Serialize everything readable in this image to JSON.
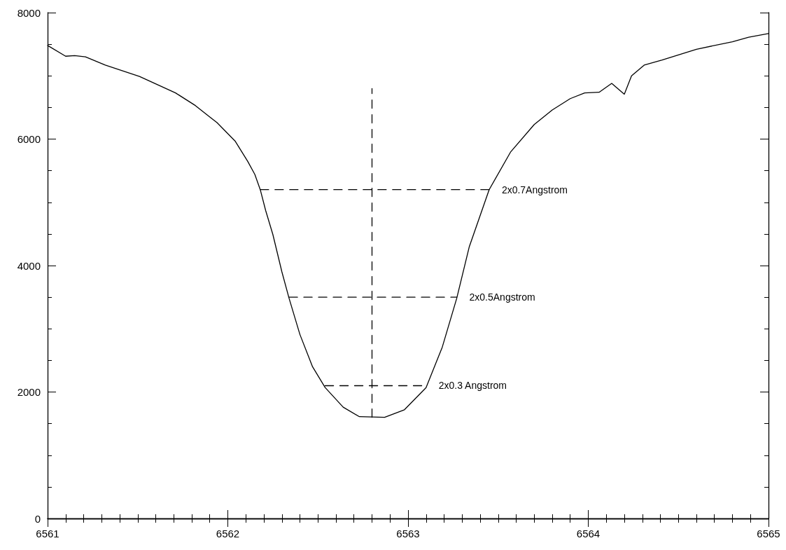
{
  "chart_data": {
    "type": "line",
    "xlim": [
      6561,
      6565
    ],
    "xticks": [
      6561,
      6562,
      6563,
      6564,
      6565
    ],
    "ylim": [
      0,
      8000
    ],
    "yticks": [
      0,
      2000,
      4000,
      6000,
      8000
    ],
    "grid": false,
    "marker": "none",
    "series": [
      {
        "color": "#000000",
        "line_style": "solid",
        "x": [
          6561.0,
          6561.1,
          6561.15,
          6561.21,
          6561.32,
          6561.51,
          6561.71,
          6561.82,
          6561.9,
          6561.94,
          6562.04,
          6562.11,
          6562.15,
          6562.18,
          6562.21,
          6562.25,
          6562.3,
          6562.34,
          6562.4,
          6562.47,
          6562.54,
          6562.64,
          6562.73,
          6562.87,
          6562.98,
          6563.1,
          6563.19,
          6563.27,
          6563.34,
          6563.45,
          6563.57,
          6563.7,
          6563.8,
          6563.9,
          6563.98,
          6564.06,
          6564.13,
          6564.2,
          6564.24,
          6564.31,
          6564.41,
          6564.6,
          6564.8,
          6564.89,
          6565.0
        ],
        "values": [
          7480,
          7310,
          7320,
          7300,
          7170,
          6990,
          6730,
          6530,
          6350,
          6260,
          5970,
          5650,
          5440,
          5200,
          4870,
          4490,
          3900,
          3480,
          2910,
          2400,
          2070,
          1760,
          1610,
          1600,
          1720,
          2070,
          2710,
          3480,
          4300,
          5200,
          5800,
          6230,
          6460,
          6640,
          6730,
          6740,
          6880,
          6710,
          7000,
          7170,
          7250,
          7420,
          7540,
          7610,
          7670
        ]
      },
      {
        "color": "#000000",
        "line_style": "dashed",
        "x": [
          6562.8,
          6562.8
        ],
        "values": [
          1600,
          6800
        ]
      },
      {
        "color": "#000000",
        "line_style": "dashed",
        "x": [
          6562.18,
          6563.45
        ],
        "values": [
          5200,
          5200
        ]
      },
      {
        "color": "#000000",
        "line_style": "dashed",
        "x": [
          6562.34,
          6563.27
        ],
        "values": [
          3500,
          3500
        ]
      },
      {
        "color": "#000000",
        "line_style": "dashed",
        "x": [
          6562.54,
          6563.1
        ],
        "values": [
          2100,
          2100
        ]
      }
    ],
    "annotations": [
      {
        "text": "2x0.7Angstrom",
        "x": 6563.45,
        "y": 5200
      },
      {
        "text": "2x0.5Angstrom",
        "x": 6563.27,
        "y": 3500
      },
      {
        "text": "2x0.3 Angstrom",
        "x": 6563.1,
        "y": 2100
      }
    ]
  }
}
